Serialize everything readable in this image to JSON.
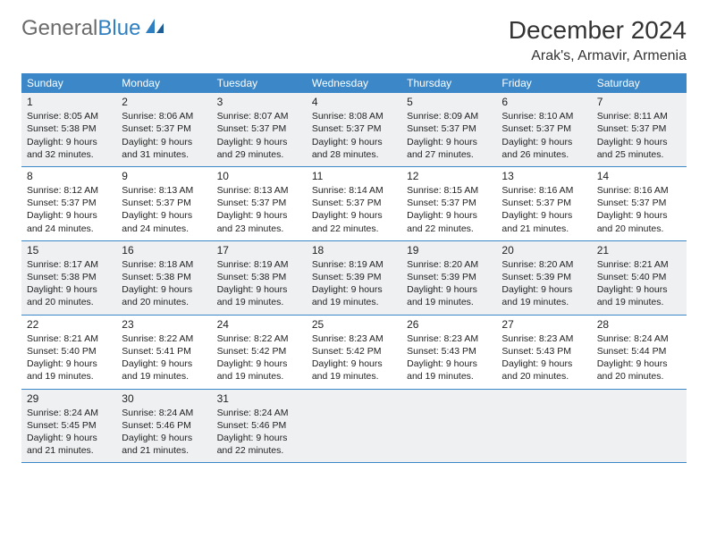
{
  "logo": {
    "text_gray": "General",
    "text_blue": "Blue"
  },
  "title": "December 2024",
  "location": "Arak's, Armavir, Armenia",
  "colors": {
    "header_bar": "#3b87c8",
    "shaded_cell": "#eef0f2",
    "logo_gray": "#6b6b6b",
    "logo_blue": "#2f7fc1",
    "text": "#222222",
    "rule": "#3b87c8"
  },
  "dow": [
    "Sunday",
    "Monday",
    "Tuesday",
    "Wednesday",
    "Thursday",
    "Friday",
    "Saturday"
  ],
  "days": [
    {
      "n": 1,
      "sr": "8:05 AM",
      "ss": "5:38 PM",
      "dl": "9 hours and 32 minutes."
    },
    {
      "n": 2,
      "sr": "8:06 AM",
      "ss": "5:37 PM",
      "dl": "9 hours and 31 minutes."
    },
    {
      "n": 3,
      "sr": "8:07 AM",
      "ss": "5:37 PM",
      "dl": "9 hours and 29 minutes."
    },
    {
      "n": 4,
      "sr": "8:08 AM",
      "ss": "5:37 PM",
      "dl": "9 hours and 28 minutes."
    },
    {
      "n": 5,
      "sr": "8:09 AM",
      "ss": "5:37 PM",
      "dl": "9 hours and 27 minutes."
    },
    {
      "n": 6,
      "sr": "8:10 AM",
      "ss": "5:37 PM",
      "dl": "9 hours and 26 minutes."
    },
    {
      "n": 7,
      "sr": "8:11 AM",
      "ss": "5:37 PM",
      "dl": "9 hours and 25 minutes."
    },
    {
      "n": 8,
      "sr": "8:12 AM",
      "ss": "5:37 PM",
      "dl": "9 hours and 24 minutes."
    },
    {
      "n": 9,
      "sr": "8:13 AM",
      "ss": "5:37 PM",
      "dl": "9 hours and 24 minutes."
    },
    {
      "n": 10,
      "sr": "8:13 AM",
      "ss": "5:37 PM",
      "dl": "9 hours and 23 minutes."
    },
    {
      "n": 11,
      "sr": "8:14 AM",
      "ss": "5:37 PM",
      "dl": "9 hours and 22 minutes."
    },
    {
      "n": 12,
      "sr": "8:15 AM",
      "ss": "5:37 PM",
      "dl": "9 hours and 22 minutes."
    },
    {
      "n": 13,
      "sr": "8:16 AM",
      "ss": "5:37 PM",
      "dl": "9 hours and 21 minutes."
    },
    {
      "n": 14,
      "sr": "8:16 AM",
      "ss": "5:37 PM",
      "dl": "9 hours and 20 minutes."
    },
    {
      "n": 15,
      "sr": "8:17 AM",
      "ss": "5:38 PM",
      "dl": "9 hours and 20 minutes."
    },
    {
      "n": 16,
      "sr": "8:18 AM",
      "ss": "5:38 PM",
      "dl": "9 hours and 20 minutes."
    },
    {
      "n": 17,
      "sr": "8:19 AM",
      "ss": "5:38 PM",
      "dl": "9 hours and 19 minutes."
    },
    {
      "n": 18,
      "sr": "8:19 AM",
      "ss": "5:39 PM",
      "dl": "9 hours and 19 minutes."
    },
    {
      "n": 19,
      "sr": "8:20 AM",
      "ss": "5:39 PM",
      "dl": "9 hours and 19 minutes."
    },
    {
      "n": 20,
      "sr": "8:20 AM",
      "ss": "5:39 PM",
      "dl": "9 hours and 19 minutes."
    },
    {
      "n": 21,
      "sr": "8:21 AM",
      "ss": "5:40 PM",
      "dl": "9 hours and 19 minutes."
    },
    {
      "n": 22,
      "sr": "8:21 AM",
      "ss": "5:40 PM",
      "dl": "9 hours and 19 minutes."
    },
    {
      "n": 23,
      "sr": "8:22 AM",
      "ss": "5:41 PM",
      "dl": "9 hours and 19 minutes."
    },
    {
      "n": 24,
      "sr": "8:22 AM",
      "ss": "5:42 PM",
      "dl": "9 hours and 19 minutes."
    },
    {
      "n": 25,
      "sr": "8:23 AM",
      "ss": "5:42 PM",
      "dl": "9 hours and 19 minutes."
    },
    {
      "n": 26,
      "sr": "8:23 AM",
      "ss": "5:43 PM",
      "dl": "9 hours and 19 minutes."
    },
    {
      "n": 27,
      "sr": "8:23 AM",
      "ss": "5:43 PM",
      "dl": "9 hours and 20 minutes."
    },
    {
      "n": 28,
      "sr": "8:24 AM",
      "ss": "5:44 PM",
      "dl": "9 hours and 20 minutes."
    },
    {
      "n": 29,
      "sr": "8:24 AM",
      "ss": "5:45 PM",
      "dl": "9 hours and 21 minutes."
    },
    {
      "n": 30,
      "sr": "8:24 AM",
      "ss": "5:46 PM",
      "dl": "9 hours and 21 minutes."
    },
    {
      "n": 31,
      "sr": "8:24 AM",
      "ss": "5:46 PM",
      "dl": "9 hours and 22 minutes."
    }
  ],
  "labels": {
    "sunrise": "Sunrise:",
    "sunset": "Sunset:",
    "daylight": "Daylight:"
  },
  "layout": {
    "start_dow": 0,
    "weeks": 5,
    "trailing_empty": 4
  }
}
